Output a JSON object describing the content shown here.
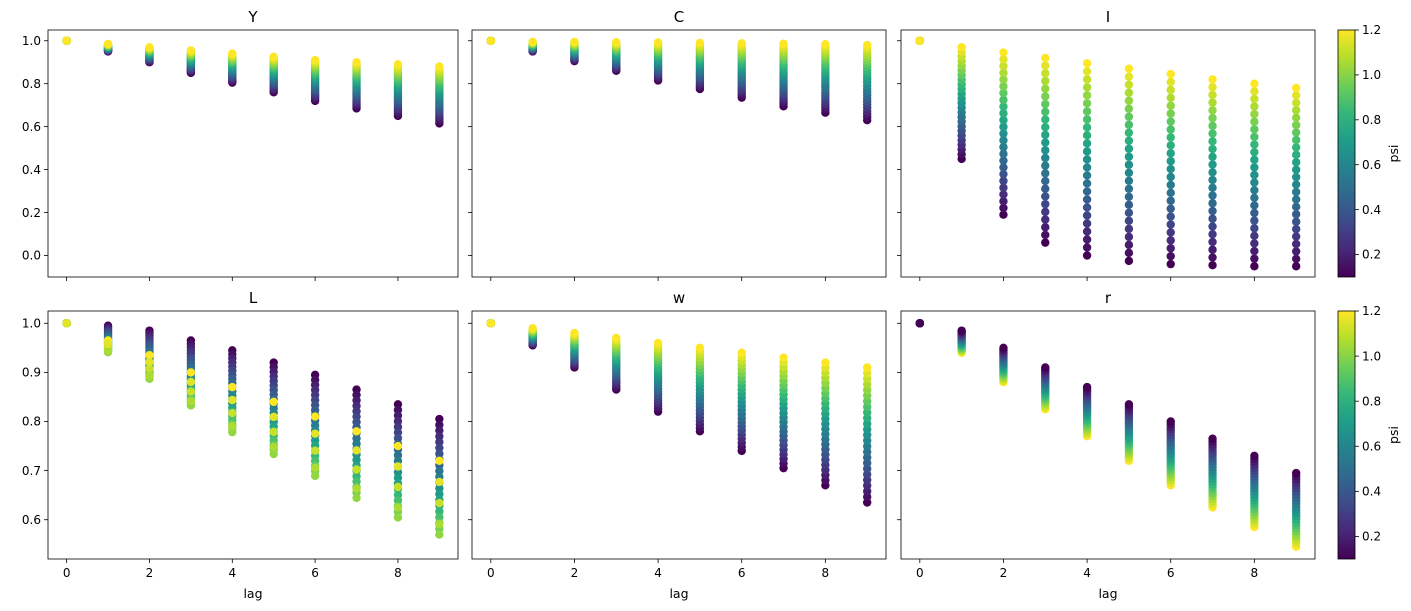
{
  "figure": {
    "type": "scatter-grid",
    "colormap": "viridis",
    "colorbar_label": "psi",
    "colorbar_range": [
      0.1,
      1.2
    ],
    "colorbar_ticks": [
      "0.2",
      "0.4",
      "0.6",
      "0.8",
      "1.0",
      "1.2"
    ],
    "shared_xlabel": "lag",
    "x_ticks": [
      "0",
      "2",
      "4",
      "6",
      "8"
    ],
    "top_y_ticks": [
      "0.0",
      "0.2",
      "0.4",
      "0.6",
      "0.8",
      "1.0"
    ],
    "bottom_y_ticks": [
      "0.6",
      "0.7",
      "0.8",
      "0.9",
      "1.0"
    ]
  },
  "chart_data": [
    {
      "type": "scatter",
      "title": "Y",
      "xlim": [
        -0.45,
        9.45
      ],
      "ylim": [
        -0.1,
        1.05
      ],
      "lags": [
        0,
        1,
        2,
        3,
        4,
        5,
        6,
        7,
        8,
        9
      ],
      "psi_low_values": [
        1.0,
        0.95,
        0.9,
        0.85,
        0.805,
        0.76,
        0.72,
        0.685,
        0.65,
        0.615
      ],
      "psi_high_values": [
        1.0,
        0.985,
        0.97,
        0.955,
        0.94,
        0.925,
        0.91,
        0.9,
        0.89,
        0.88
      ],
      "marker_order": "high_on_top"
    },
    {
      "type": "scatter",
      "title": "C",
      "xlim": [
        -0.45,
        9.45
      ],
      "ylim": [
        -0.1,
        1.05
      ],
      "lags": [
        0,
        1,
        2,
        3,
        4,
        5,
        6,
        7,
        8,
        9
      ],
      "psi_low_values": [
        1.0,
        0.95,
        0.905,
        0.86,
        0.815,
        0.775,
        0.735,
        0.695,
        0.665,
        0.63
      ],
      "psi_high_values": [
        1.0,
        0.995,
        0.995,
        0.993,
        0.992,
        0.99,
        0.988,
        0.986,
        0.984,
        0.98
      ],
      "marker_order": "high_on_top"
    },
    {
      "type": "scatter",
      "title": "I",
      "xlim": [
        -0.45,
        9.45
      ],
      "ylim": [
        -0.1,
        1.05
      ],
      "lags": [
        0,
        1,
        2,
        3,
        4,
        5,
        6,
        7,
        8,
        9
      ],
      "psi_low_values": [
        1.0,
        0.45,
        0.19,
        0.06,
        0.0,
        -0.025,
        -0.04,
        -0.045,
        -0.05,
        -0.05
      ],
      "psi_high_values": [
        1.0,
        0.97,
        0.945,
        0.92,
        0.895,
        0.87,
        0.845,
        0.82,
        0.8,
        0.78
      ],
      "marker_order": "high_on_top"
    },
    {
      "type": "scatter",
      "title": "L",
      "xlabel": "lag",
      "xlim": [
        -0.45,
        9.45
      ],
      "ylim": [
        0.52,
        1.025
      ],
      "lags": [
        0,
        1,
        2,
        3,
        4,
        5,
        6,
        7,
        8,
        9
      ],
      "psi_low_values": [
        1.0,
        0.995,
        0.985,
        0.965,
        0.945,
        0.92,
        0.895,
        0.865,
        0.835,
        0.805
      ],
      "psi_high_values": [
        1.0,
        0.965,
        0.935,
        0.9,
        0.87,
        0.84,
        0.81,
        0.78,
        0.75,
        0.72
      ],
      "psi_mid_values": [
        1.0,
        0.94,
        0.885,
        0.83,
        0.775,
        0.73,
        0.685,
        0.64,
        0.6,
        0.565
      ],
      "marker_order": "mixed"
    },
    {
      "type": "scatter",
      "title": "w",
      "xlabel": "lag",
      "xlim": [
        -0.45,
        9.45
      ],
      "ylim": [
        0.52,
        1.025
      ],
      "lags": [
        0,
        1,
        2,
        3,
        4,
        5,
        6,
        7,
        8,
        9
      ],
      "psi_low_values": [
        1.0,
        0.955,
        0.91,
        0.865,
        0.82,
        0.78,
        0.74,
        0.705,
        0.67,
        0.635
      ],
      "psi_high_values": [
        1.0,
        0.99,
        0.98,
        0.97,
        0.96,
        0.95,
        0.94,
        0.93,
        0.92,
        0.91
      ],
      "marker_order": "high_on_top"
    },
    {
      "type": "scatter",
      "title": "r",
      "xlabel": "lag",
      "xlim": [
        -0.45,
        9.45
      ],
      "ylim": [
        0.52,
        1.025
      ],
      "lags": [
        0,
        1,
        2,
        3,
        4,
        5,
        6,
        7,
        8,
        9
      ],
      "psi_low_values": [
        1.0,
        0.985,
        0.95,
        0.91,
        0.87,
        0.835,
        0.8,
        0.765,
        0.73,
        0.695
      ],
      "psi_high_values": [
        1.0,
        0.94,
        0.88,
        0.825,
        0.77,
        0.72,
        0.67,
        0.625,
        0.585,
        0.545
      ],
      "marker_order": "low_on_top"
    }
  ]
}
